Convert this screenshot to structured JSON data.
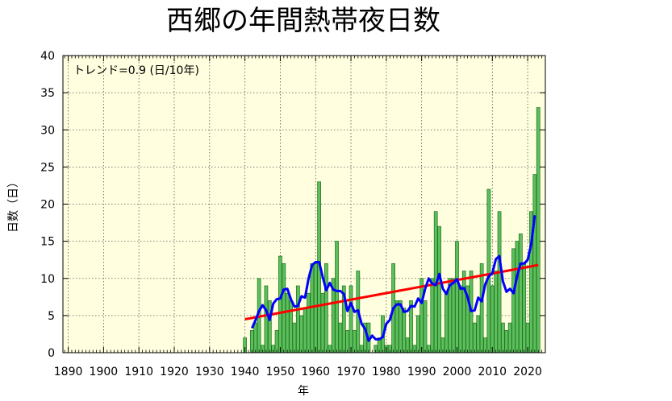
{
  "chart_data": {
    "type": "bar",
    "title": "西郷の年間熱帯夜日数",
    "xlabel": "年",
    "ylabel": "日数（日）",
    "xlim": [
      1888.5,
      2025
    ],
    "ylim": [
      0,
      40
    ],
    "xticks": [
      1890,
      1900,
      1910,
      1920,
      1930,
      1940,
      1950,
      1960,
      1970,
      1980,
      1990,
      2000,
      2010,
      2020
    ],
    "yticks": [
      0,
      5,
      10,
      15,
      20,
      25,
      30,
      35,
      40
    ],
    "grid": true,
    "trend_text": "トレンド=0.9 (日/10年)",
    "colors": {
      "plot_bg": "#ffffe0",
      "bar_fill": "#5cbf5c",
      "bar_edge": "#1e6e1e",
      "moving_average": "#0000ff",
      "trend": "#ff0000"
    },
    "years": [
      1940,
      1941,
      1942,
      1943,
      1944,
      1945,
      1946,
      1947,
      1948,
      1949,
      1950,
      1951,
      1952,
      1953,
      1954,
      1955,
      1956,
      1957,
      1958,
      1959,
      1960,
      1961,
      1962,
      1963,
      1964,
      1965,
      1966,
      1967,
      1968,
      1969,
      1970,
      1971,
      1972,
      1973,
      1974,
      1975,
      1976,
      1977,
      1978,
      1979,
      1980,
      1981,
      1982,
      1983,
      1984,
      1985,
      1986,
      1987,
      1988,
      1989,
      1990,
      1991,
      1992,
      1993,
      1994,
      1995,
      1996,
      1997,
      1998,
      1999,
      2000,
      2001,
      2002,
      2003,
      2004,
      2005,
      2006,
      2007,
      2008,
      2009,
      2010,
      2011,
      2012,
      2013,
      2014,
      2015,
      2016,
      2017,
      2018,
      2019,
      2020,
      2021,
      2022,
      2023,
      2024
    ],
    "values": [
      2,
      0,
      3,
      4,
      10,
      1,
      9,
      7,
      1,
      3,
      13,
      12,
      8,
      7,
      4,
      9,
      5,
      6,
      8,
      12,
      12,
      23,
      8,
      12,
      1,
      10,
      15,
      4,
      9,
      3,
      9,
      3,
      11,
      1,
      4,
      4,
      0,
      1,
      2,
      5,
      1,
      1,
      12,
      7,
      7,
      6,
      2,
      7,
      1,
      5,
      10,
      7,
      1,
      10,
      19,
      17,
      2,
      8,
      10,
      10,
      15,
      9,
      11,
      9,
      11,
      4,
      5,
      12,
      2,
      22,
      9,
      11,
      19,
      4,
      3,
      4,
      14,
      15,
      16,
      12,
      4,
      19,
      24,
      33,
      0
    ],
    "moving_average": [
      [
        1942,
        3.3
      ],
      [
        1943,
        4.4
      ],
      [
        1944,
        5.6
      ],
      [
        1945,
        6.4
      ],
      [
        1946,
        5.7
      ],
      [
        1947,
        4.4
      ],
      [
        1948,
        6.6
      ],
      [
        1949,
        7.2
      ],
      [
        1950,
        7.3
      ],
      [
        1951,
        8.5
      ],
      [
        1952,
        8.6
      ],
      [
        1953,
        7.2
      ],
      [
        1954,
        6.2
      ],
      [
        1955,
        6.3
      ],
      [
        1956,
        7.6
      ],
      [
        1957,
        7.4
      ],
      [
        1958,
        10.0
      ],
      [
        1959,
        11.8
      ],
      [
        1960,
        12.2
      ],
      [
        1961,
        12.2
      ],
      [
        1962,
        10.2
      ],
      [
        1963,
        8.4
      ],
      [
        1964,
        9.4
      ],
      [
        1965,
        8.5
      ],
      [
        1966,
        8.3
      ],
      [
        1967,
        8.3
      ],
      [
        1968,
        7.9
      ],
      [
        1969,
        5.6
      ],
      [
        1970,
        6.7
      ],
      [
        1971,
        5.5
      ],
      [
        1972,
        5.7
      ],
      [
        1973,
        3.9
      ],
      [
        1974,
        3.2
      ],
      [
        1975,
        1.6
      ],
      [
        1976,
        2.3
      ],
      [
        1977,
        1.8
      ],
      [
        1978,
        1.8
      ],
      [
        1979,
        2.1
      ],
      [
        1980,
        3.9
      ],
      [
        1981,
        4.4
      ],
      [
        1982,
        6.0
      ],
      [
        1983,
        6.5
      ],
      [
        1984,
        6.5
      ],
      [
        1985,
        5.5
      ],
      [
        1986,
        5.6
      ],
      [
        1987,
        6.3
      ],
      [
        1988,
        6.2
      ],
      [
        1989,
        7.3
      ],
      [
        1990,
        6.7
      ],
      [
        1991,
        8.6
      ],
      [
        1992,
        10.0
      ],
      [
        1993,
        9.3
      ],
      [
        1994,
        9.1
      ],
      [
        1995,
        10.6
      ],
      [
        1996,
        8.6
      ],
      [
        1997,
        7.9
      ],
      [
        1998,
        9.1
      ],
      [
        1999,
        9.4
      ],
      [
        2000,
        9.9
      ],
      [
        2001,
        8.6
      ],
      [
        2002,
        8.7
      ],
      [
        2003,
        7.5
      ],
      [
        2004,
        5.6
      ],
      [
        2005,
        5.7
      ],
      [
        2006,
        7.4
      ],
      [
        2007,
        6.9
      ],
      [
        2008,
        9.2
      ],
      [
        2009,
        10.3
      ],
      [
        2010,
        10.7
      ],
      [
        2011,
        12.6
      ],
      [
        2012,
        13.0
      ],
      [
        2013,
        9.6
      ],
      [
        2014,
        8.2
      ],
      [
        2015,
        8.6
      ],
      [
        2016,
        8.0
      ],
      [
        2017,
        10.3
      ],
      [
        2018,
        12.0
      ],
      [
        2019,
        12.0
      ],
      [
        2020,
        12.5
      ],
      [
        2021,
        14.6
      ],
      [
        2022,
        18.5
      ]
    ],
    "trend_line": [
      [
        1940,
        4.5
      ],
      [
        2023,
        11.8
      ]
    ]
  }
}
